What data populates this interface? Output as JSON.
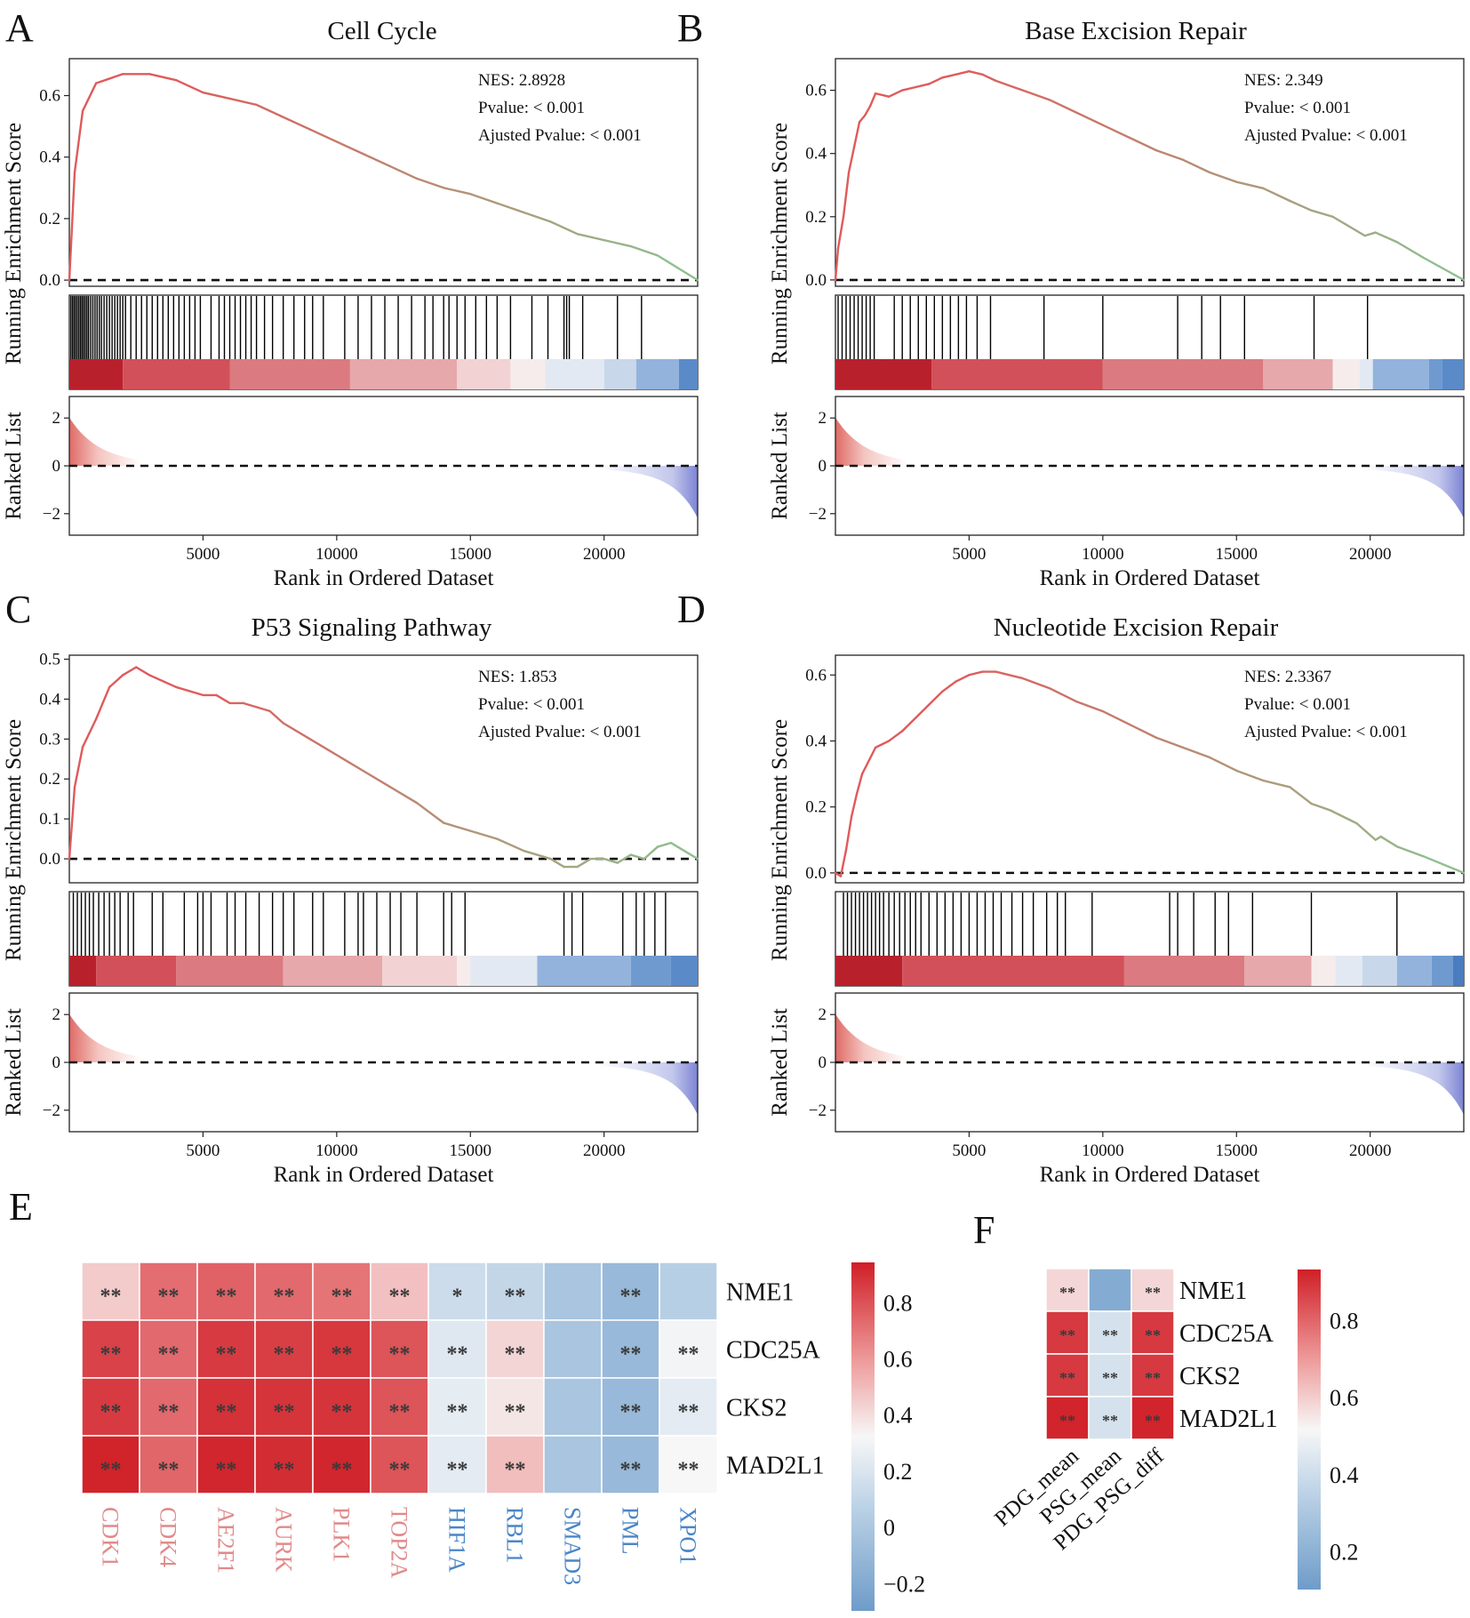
{
  "chart_data": [
    {
      "type": "line",
      "panel": "A",
      "title": "Cell Cycle",
      "ylabel": "Running Enrichment Score",
      "ylabel2": "Ranked List",
      "xlabel": "Rank in Ordered Dataset",
      "stats": [
        "NES: 2.8928",
        "Pvalue: < 0.001",
        "Ajusted Pvalue: < 0.001"
      ],
      "x": [
        0,
        200,
        500,
        1000,
        2000,
        3000,
        4000,
        5000,
        6000,
        7000,
        8000,
        9000,
        10000,
        11000,
        12000,
        13000,
        14000,
        15000,
        16000,
        17000,
        18000,
        19000,
        20000,
        21000,
        22000,
        23500
      ],
      "es": [
        0.0,
        0.35,
        0.55,
        0.64,
        0.67,
        0.67,
        0.65,
        0.61,
        0.59,
        0.57,
        0.53,
        0.49,
        0.45,
        0.41,
        0.37,
        0.33,
        0.3,
        0.28,
        0.25,
        0.22,
        0.19,
        0.15,
        0.13,
        0.11,
        0.08,
        0.0
      ],
      "ylim": [
        -0.02,
        0.72
      ],
      "yticks": [
        "0.0",
        "0.2",
        "0.4",
        "0.6"
      ],
      "yticks_v": [
        0.0,
        0.2,
        0.4,
        0.6
      ],
      "xticks": [
        "5000",
        "10000",
        "15000",
        "20000"
      ],
      "xticks_v": [
        5000,
        10000,
        15000,
        20000
      ],
      "rank_yticks": [
        "2",
        "0",
        "−2"
      ],
      "rank_yticks_v": [
        2,
        0,
        -2
      ],
      "hits": [
        60,
        120,
        180,
        240,
        300,
        360,
        420,
        480,
        540,
        600,
        660,
        720,
        800,
        880,
        960,
        1040,
        1120,
        1200,
        1300,
        1400,
        1500,
        1600,
        1700,
        1800,
        1900,
        2000,
        2100,
        2300,
        2500,
        2700,
        2900,
        3100,
        3300,
        3500,
        3700,
        3900,
        4100,
        4300,
        4500,
        4700,
        4900,
        5300,
        5600,
        5800,
        6000,
        6200,
        6400,
        6600,
        6800,
        7000,
        7300,
        7600,
        8000,
        8400,
        8800,
        9100,
        9500,
        10300,
        10800,
        11300,
        11800,
        12300,
        12800,
        13300,
        13600,
        14000,
        14200,
        14500,
        14800,
        15200,
        15600,
        16000,
        16500,
        17300,
        17900,
        18500,
        18600,
        18700,
        19200,
        20500,
        21400
      ],
      "bands": [
        [
          0,
          2000,
          "#b8202c"
        ],
        [
          2000,
          6000,
          "#d2505a"
        ],
        [
          6000,
          10500,
          "#db7a80"
        ],
        [
          10500,
          14500,
          "#e6a8ab"
        ],
        [
          14500,
          16500,
          "#f2d2d3"
        ],
        [
          16500,
          17800,
          "#f6ecec"
        ],
        [
          17800,
          20000,
          "#e3e9f2"
        ],
        [
          20000,
          21200,
          "#c9d7ea"
        ],
        [
          21200,
          22800,
          "#93b3dc"
        ],
        [
          22800,
          23500,
          "#5a8ac8"
        ]
      ]
    },
    {
      "type": "line",
      "panel": "B",
      "title": "Base Excision Repair",
      "ylabel": "Running Enrichment Score",
      "ylabel2": "Ranked List",
      "xlabel": "Rank in Ordered Dataset",
      "stats": [
        "NES: 2.349",
        "Pvalue: < 0.001",
        "Ajusted Pvalue: < 0.001"
      ],
      "x": [
        0,
        100,
        300,
        500,
        700,
        900,
        1100,
        1300,
        1500,
        2000,
        2500,
        3000,
        3500,
        4000,
        4500,
        5000,
        5500,
        6000,
        7000,
        8000,
        9000,
        10000,
        11000,
        12000,
        13000,
        14000,
        15000,
        16000,
        17000,
        17800,
        18600,
        19400,
        19800,
        20200,
        21000,
        22000,
        23500
      ],
      "es": [
        0.0,
        0.1,
        0.2,
        0.34,
        0.42,
        0.5,
        0.52,
        0.55,
        0.59,
        0.58,
        0.6,
        0.61,
        0.62,
        0.64,
        0.65,
        0.66,
        0.65,
        0.63,
        0.6,
        0.57,
        0.53,
        0.49,
        0.45,
        0.41,
        0.38,
        0.34,
        0.31,
        0.29,
        0.25,
        0.22,
        0.2,
        0.16,
        0.14,
        0.15,
        0.12,
        0.07,
        0.0
      ],
      "ylim": [
        -0.02,
        0.7
      ],
      "yticks": [
        "0.0",
        "0.2",
        "0.4",
        "0.6"
      ],
      "yticks_v": [
        0.0,
        0.2,
        0.4,
        0.6
      ],
      "xticks": [
        "5000",
        "10000",
        "15000",
        "20000"
      ],
      "xticks_v": [
        5000,
        10000,
        15000,
        20000
      ],
      "rank_yticks": [
        "2",
        "0",
        "−2"
      ],
      "rank_yticks_v": [
        2,
        0,
        -2
      ],
      "hits": [
        100,
        250,
        400,
        550,
        700,
        850,
        1000,
        1150,
        1300,
        1450,
        2200,
        2500,
        2800,
        3100,
        3400,
        3700,
        4000,
        4300,
        4600,
        4900,
        5300,
        5800,
        7800,
        10000,
        12800,
        13700,
        14400,
        15300,
        17900,
        19900
      ],
      "bands": [
        [
          0,
          3600,
          "#b8202c"
        ],
        [
          3600,
          10000,
          "#d2505a"
        ],
        [
          10000,
          16000,
          "#db7a80"
        ],
        [
          16000,
          18600,
          "#e6a8ab"
        ],
        [
          18600,
          19600,
          "#f6ecec"
        ],
        [
          19600,
          20100,
          "#e3e9f2"
        ],
        [
          20100,
          22200,
          "#93b3dc"
        ],
        [
          22200,
          22700,
          "#6f9ad0"
        ],
        [
          22700,
          23500,
          "#5a8ac8"
        ]
      ]
    },
    {
      "type": "line",
      "panel": "C",
      "title": "P53 Signaling Pathway",
      "ylabel": "Running Enrichment Score",
      "ylabel2": "Ranked List",
      "xlabel": "Rank in Ordered Dataset",
      "stats": [
        "NES: 1.853",
        "Pvalue: < 0.001",
        "Ajusted Pvalue: < 0.001"
      ],
      "x": [
        0,
        200,
        500,
        1000,
        1500,
        2000,
        2500,
        3000,
        4000,
        5000,
        5500,
        6000,
        6500,
        7000,
        7500,
        8000,
        9000,
        10000,
        11000,
        12000,
        13000,
        14000,
        15000,
        16000,
        17000,
        18000,
        18500,
        19000,
        19500,
        20000,
        20500,
        21000,
        21500,
        22000,
        22500,
        23500
      ],
      "es": [
        0.0,
        0.18,
        0.28,
        0.35,
        0.43,
        0.46,
        0.48,
        0.46,
        0.43,
        0.41,
        0.41,
        0.39,
        0.39,
        0.38,
        0.37,
        0.34,
        0.3,
        0.26,
        0.22,
        0.18,
        0.14,
        0.09,
        0.07,
        0.05,
        0.02,
        0.0,
        -0.02,
        -0.02,
        0.0,
        0.0,
        -0.01,
        0.01,
        0.0,
        0.03,
        0.04,
        0.0
      ],
      "ylim": [
        -0.06,
        0.51
      ],
      "yticks": [
        "0.0",
        "0.1",
        "0.2",
        "0.3",
        "0.4",
        "0.5"
      ],
      "yticks_v": [
        0.0,
        0.1,
        0.2,
        0.3,
        0.4,
        0.5
      ],
      "xticks": [
        "5000",
        "10000",
        "15000",
        "20000"
      ],
      "xticks_v": [
        5000,
        10000,
        15000,
        20000
      ],
      "rank_yticks": [
        "2",
        "0",
        "−2"
      ],
      "rank_yticks_v": [
        2,
        0,
        -2
      ],
      "hits": [
        150,
        300,
        450,
        600,
        750,
        900,
        1100,
        1300,
        1500,
        1700,
        1900,
        2200,
        2400,
        3100,
        3500,
        4300,
        4800,
        5000,
        5300,
        5900,
        6200,
        6600,
        7100,
        7600,
        8000,
        8400,
        9100,
        9500,
        10300,
        10800,
        11000,
        11500,
        12000,
        12400,
        13000,
        14000,
        14300,
        14800,
        18500,
        18800,
        19200,
        20700,
        21200,
        21500,
        21900,
        22300
      ],
      "bands": [
        [
          0,
          1000,
          "#b8202c"
        ],
        [
          1000,
          4000,
          "#d2505a"
        ],
        [
          4000,
          8000,
          "#db7a80"
        ],
        [
          8000,
          11700,
          "#e6a8ab"
        ],
        [
          11700,
          14500,
          "#f2d2d3"
        ],
        [
          14500,
          15000,
          "#f6ecec"
        ],
        [
          15000,
          17500,
          "#e3e9f2"
        ],
        [
          17500,
          21000,
          "#93b3dc"
        ],
        [
          21000,
          22500,
          "#6f9ad0"
        ],
        [
          22500,
          23500,
          "#5a8ac8"
        ]
      ]
    },
    {
      "type": "line",
      "panel": "D",
      "title": "Nucleotide Excision Repair",
      "ylabel": "Running Enrichment Score",
      "ylabel2": "Ranked List",
      "xlabel": "Rank in Ordered Dataset",
      "stats": [
        "NES: 2.3367",
        "Pvalue: < 0.001",
        "Ajusted Pvalue: < 0.001"
      ],
      "x": [
        0,
        200,
        400,
        600,
        800,
        1000,
        1500,
        2000,
        2500,
        3000,
        3500,
        4000,
        4500,
        5000,
        5500,
        6000,
        7000,
        8000,
        9000,
        10000,
        11000,
        12000,
        13000,
        14000,
        15000,
        16000,
        17000,
        17800,
        18500,
        19500,
        20200,
        20400,
        21000,
        22000,
        23500
      ],
      "es": [
        0.0,
        -0.01,
        0.07,
        0.17,
        0.24,
        0.3,
        0.38,
        0.4,
        0.43,
        0.47,
        0.51,
        0.55,
        0.58,
        0.6,
        0.61,
        0.61,
        0.59,
        0.56,
        0.52,
        0.49,
        0.45,
        0.41,
        0.38,
        0.35,
        0.31,
        0.28,
        0.26,
        0.21,
        0.19,
        0.15,
        0.1,
        0.11,
        0.08,
        0.05,
        0.0
      ],
      "ylim": [
        -0.03,
        0.66
      ],
      "yticks": [
        "0.0",
        "0.2",
        "0.4",
        "0.6"
      ],
      "yticks_v": [
        0.0,
        0.2,
        0.4,
        0.6
      ],
      "xticks": [
        "5000",
        "10000",
        "15000",
        "20000"
      ],
      "xticks_v": [
        5000,
        10000,
        15000,
        20000
      ],
      "rank_yticks": [
        "2",
        "0",
        "−2"
      ],
      "rank_yticks_v": [
        2,
        0,
        -2
      ],
      "hits": [
        300,
        450,
        600,
        750,
        900,
        1050,
        1200,
        1350,
        1500,
        1650,
        1800,
        2000,
        2200,
        2400,
        2600,
        2800,
        3000,
        3200,
        3500,
        3800,
        4100,
        4400,
        4700,
        5000,
        5300,
        5600,
        5900,
        6200,
        6600,
        7000,
        7400,
        7900,
        8300,
        8600,
        9600,
        12500,
        12800,
        13400,
        14200,
        14700,
        15600,
        17800,
        21000
      ],
      "bands": [
        [
          0,
          2500,
          "#b8202c"
        ],
        [
          2500,
          10800,
          "#d2505a"
        ],
        [
          10800,
          15300,
          "#db7a80"
        ],
        [
          15300,
          17800,
          "#e6a8ab"
        ],
        [
          17800,
          18700,
          "#f6ecec"
        ],
        [
          18700,
          19700,
          "#e3e9f2"
        ],
        [
          19700,
          21000,
          "#c9d7ea"
        ],
        [
          21000,
          22300,
          "#93b3dc"
        ],
        [
          22300,
          23100,
          "#6f9ad0"
        ],
        [
          23100,
          23500,
          "#4a7cc0"
        ]
      ]
    },
    {
      "type": "heatmap",
      "panel": "E",
      "rows": [
        "NME1",
        "CDC25A",
        "CKS2",
        "MAD2L1"
      ],
      "cols": [
        "CDK1",
        "CDK4",
        "AE2F1",
        "AURK",
        "PLK1",
        "TOP2A",
        "HIF1A",
        "RBL1",
        "SMAD3",
        "PML",
        "XPO1"
      ],
      "col_colors": [
        "#e08a8a",
        "#e08a8a",
        "#e08a8a",
        "#e08a8a",
        "#e08a8a",
        "#e08a8a",
        "#4a86c8",
        "#4a86c8",
        "#4a86c8",
        "#4a86c8",
        "#4a86c8"
      ],
      "values": [
        [
          0.45,
          0.72,
          0.75,
          0.73,
          0.7,
          0.48,
          0.14,
          0.1,
          -0.02,
          -0.1,
          0.05
        ],
        [
          0.84,
          0.73,
          0.86,
          0.85,
          0.87,
          0.79,
          0.22,
          0.42,
          -0.02,
          -0.1,
          0.3
        ],
        [
          0.86,
          0.73,
          0.89,
          0.88,
          0.88,
          0.79,
          0.25,
          0.37,
          -0.02,
          -0.1,
          0.24
        ],
        [
          0.93,
          0.74,
          0.92,
          0.9,
          0.92,
          0.79,
          0.24,
          0.49,
          -0.02,
          -0.1,
          0.32
        ]
      ],
      "stars": [
        [
          "**",
          "**",
          "**",
          "**",
          "**",
          "**",
          "*",
          "**",
          "",
          "**",
          ""
        ],
        [
          "**",
          "**",
          "**",
          "**",
          "**",
          "**",
          "**",
          "**",
          "",
          "**",
          "**"
        ],
        [
          "**",
          "**",
          "**",
          "**",
          "**",
          "**",
          "**",
          "**",
          "",
          "**",
          "**"
        ],
        [
          "**",
          "**",
          "**",
          "**",
          "**",
          "**",
          "**",
          "**",
          "",
          "**",
          "**"
        ]
      ],
      "vmin": -0.3,
      "vmax": 0.94,
      "colorbar_ticks": [
        "0.8",
        "0.6",
        "0.4",
        "0.2",
        "0",
        "−0.2"
      ],
      "colorbar_ticks_v": [
        0.8,
        0.6,
        0.4,
        0.2,
        0.0,
        -0.2
      ]
    },
    {
      "type": "heatmap",
      "panel": "F",
      "rows": [
        "NME1",
        "CDC25A",
        "CKS2",
        "MAD2L1"
      ],
      "cols": [
        "PDG_mean",
        "PSG_mean",
        "PDG_PSG_diff"
      ],
      "values": [
        [
          0.58,
          0.17,
          0.58
        ],
        [
          0.88,
          0.42,
          0.88
        ],
        [
          0.88,
          0.42,
          0.88
        ],
        [
          0.92,
          0.42,
          0.92
        ]
      ],
      "stars": [
        [
          "**",
          "",
          "**"
        ],
        [
          "**",
          "**",
          "**"
        ],
        [
          "**",
          "**",
          "**"
        ],
        [
          "**",
          "**",
          "**"
        ]
      ],
      "vmin": 0.1,
      "vmax": 0.93,
      "colorbar_ticks": [
        "0.8",
        "0.6",
        "0.4",
        "0.2"
      ],
      "colorbar_ticks_v": [
        0.8,
        0.6,
        0.4,
        0.2
      ]
    }
  ]
}
